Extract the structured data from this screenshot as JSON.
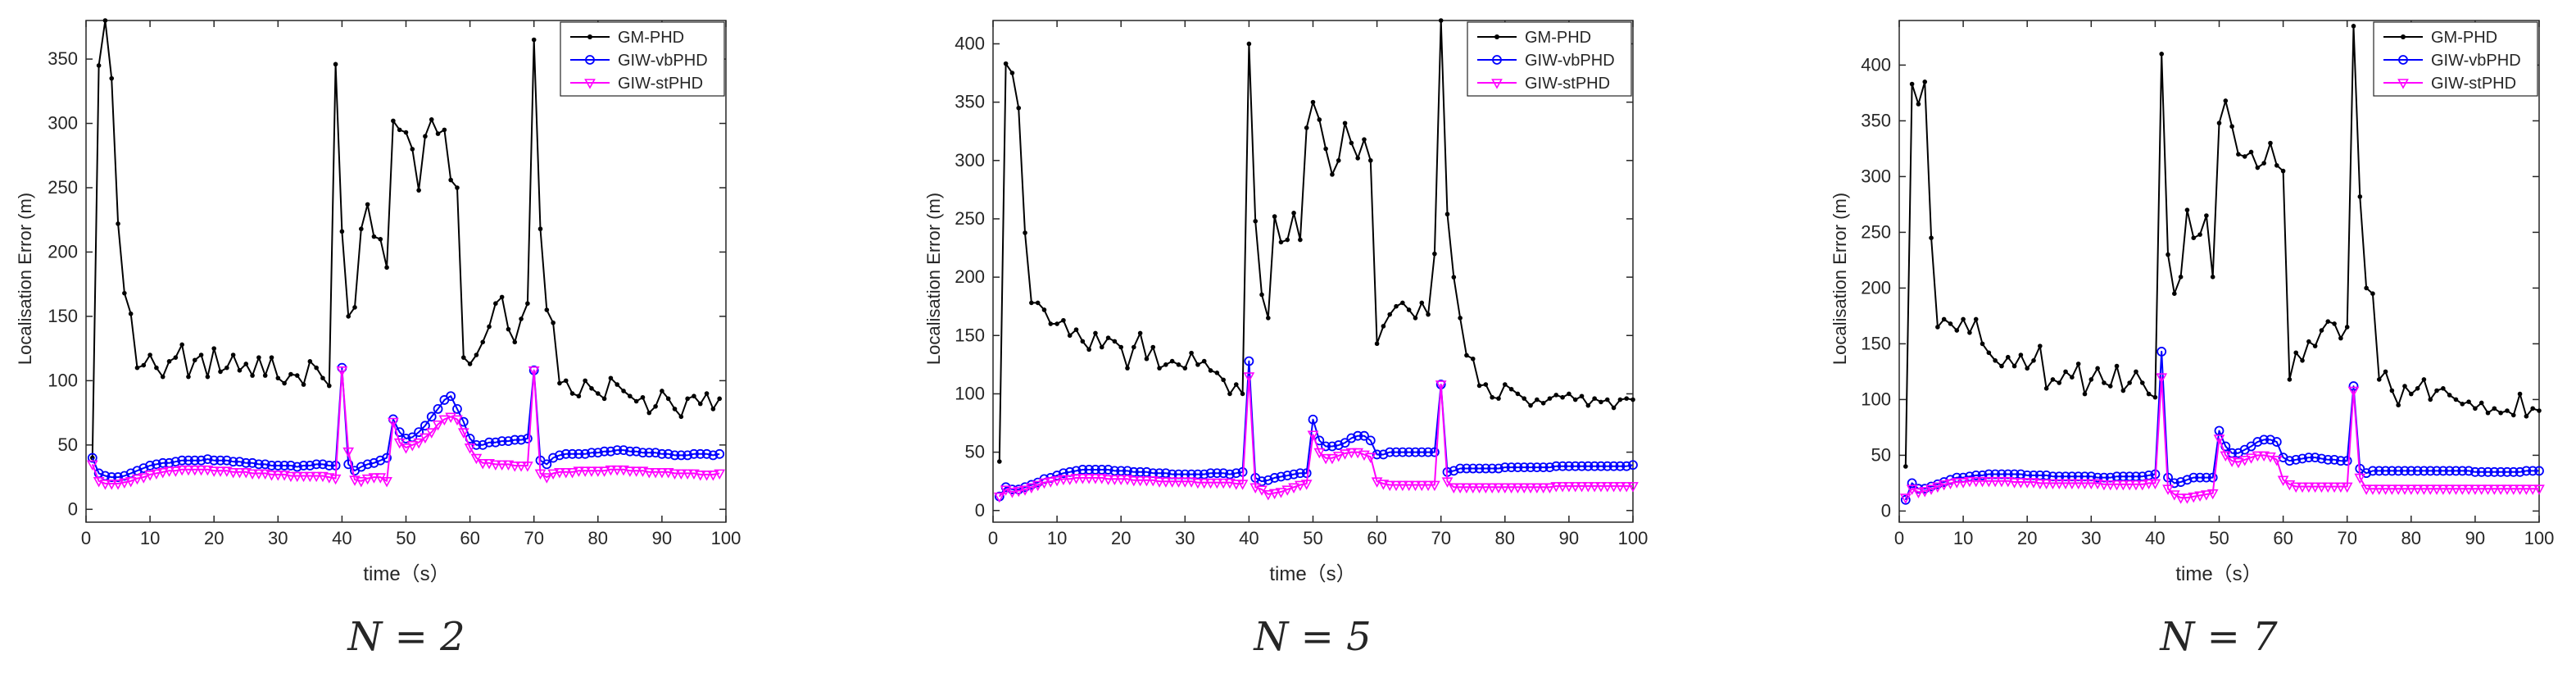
{
  "colors": {
    "gm": "#000000",
    "vb": "#0000ff",
    "st": "#ff00ff",
    "axis": "#262626"
  },
  "chart_data": [
    {
      "type": "line",
      "caption": "N = 2",
      "xlabel": "time（s）",
      "ylabel": "Localisation Error (m)",
      "xlim": [
        0,
        100
      ],
      "ylim": [
        -10,
        380
      ],
      "xticks": [
        0,
        10,
        20,
        30,
        40,
        50,
        60,
        70,
        80,
        90,
        100
      ],
      "yticks": [
        0,
        50,
        100,
        150,
        200,
        250,
        300,
        350
      ],
      "legend_position": "top-right",
      "series": [
        {
          "name": "GM-PHD",
          "color": "#000000",
          "marker": "dot",
          "values": [
            40,
            345,
            380,
            335,
            222,
            168,
            152,
            110,
            112,
            120,
            110,
            103,
            115,
            118,
            128,
            103,
            116,
            120,
            103,
            125,
            107,
            110,
            120,
            108,
            113,
            104,
            118,
            104,
            118,
            102,
            98,
            105,
            104,
            97,
            115,
            110,
            102,
            96,
            346,
            216,
            150,
            157,
            218,
            237,
            212,
            210,
            188,
            302,
            295,
            293,
            280,
            248,
            290,
            303,
            292,
            295,
            256,
            250,
            118,
            113,
            120,
            130,
            142,
            160,
            165,
            140,
            130,
            148,
            160,
            365,
            218,
            155,
            145,
            98,
            100,
            90,
            88,
            100,
            94,
            90,
            86,
            102,
            97,
            92,
            88,
            84,
            87,
            75,
            80,
            92,
            86,
            78,
            72,
            86,
            88,
            82,
            90,
            78,
            86
          ]
        },
        {
          "name": "GIW-vbPHD",
          "color": "#0000ff",
          "marker": "circle",
          "values": [
            40,
            28,
            26,
            25,
            25,
            26,
            28,
            30,
            32,
            34,
            35,
            36,
            36,
            37,
            38,
            38,
            38,
            38,
            39,
            38,
            38,
            38,
            37,
            37,
            36,
            36,
            35,
            35,
            34,
            34,
            34,
            34,
            33,
            34,
            34,
            35,
            35,
            34,
            34,
            110,
            35,
            30,
            33,
            35,
            36,
            38,
            40,
            70,
            60,
            55,
            56,
            60,
            65,
            72,
            78,
            85,
            88,
            78,
            68,
            55,
            50,
            50,
            52,
            52,
            53,
            53,
            54,
            54,
            55,
            108,
            38,
            35,
            40,
            42,
            43,
            43,
            43,
            43,
            44,
            44,
            45,
            45,
            46,
            46,
            45,
            45,
            44,
            44,
            44,
            43,
            43,
            42,
            42,
            42,
            43,
            43,
            43,
            42,
            43
          ]
        },
        {
          "name": "GIW-stPHD",
          "color": "#ff00ff",
          "marker": "triangle-down",
          "values": [
            35,
            22,
            20,
            20,
            20,
            21,
            22,
            24,
            25,
            27,
            28,
            29,
            30,
            30,
            31,
            31,
            31,
            31,
            31,
            30,
            30,
            30,
            29,
            29,
            29,
            28,
            28,
            28,
            27,
            27,
            27,
            26,
            26,
            26,
            26,
            26,
            26,
            25,
            24,
            108,
            45,
            23,
            22,
            24,
            25,
            25,
            22,
            68,
            52,
            48,
            50,
            52,
            56,
            60,
            66,
            70,
            72,
            70,
            60,
            48,
            40,
            36,
            36,
            35,
            35,
            35,
            34,
            34,
            34,
            108,
            28,
            25,
            28,
            29,
            29,
            29,
            30,
            30,
            30,
            30,
            30,
            31,
            31,
            31,
            30,
            30,
            30,
            29,
            29,
            29,
            29,
            28,
            28,
            28,
            28,
            27,
            27,
            27,
            28
          ]
        }
      ]
    },
    {
      "type": "line",
      "caption": "N = 5",
      "xlabel": "time（s）",
      "ylabel": "Localisation Error (m)",
      "xlim": [
        0,
        100
      ],
      "ylim": [
        -10,
        420
      ],
      "xticks": [
        0,
        10,
        20,
        30,
        40,
        50,
        60,
        70,
        80,
        90,
        100
      ],
      "yticks": [
        0,
        50,
        100,
        150,
        200,
        250,
        300,
        350,
        400
      ],
      "legend_position": "top-right",
      "series": [
        {
          "name": "GM-PHD",
          "color": "#000000",
          "marker": "dot",
          "values": [
            42,
            383,
            375,
            345,
            238,
            178,
            178,
            172,
            160,
            160,
            163,
            150,
            155,
            145,
            138,
            152,
            140,
            148,
            145,
            140,
            122,
            140,
            152,
            130,
            140,
            122,
            125,
            128,
            125,
            122,
            135,
            125,
            128,
            120,
            118,
            112,
            100,
            108,
            100,
            400,
            248,
            185,
            165,
            252,
            230,
            232,
            255,
            232,
            328,
            350,
            335,
            310,
            288,
            300,
            332,
            315,
            302,
            318,
            300,
            143,
            158,
            168,
            175,
            178,
            172,
            165,
            178,
            168,
            220,
            420,
            254,
            200,
            165,
            133,
            130,
            107,
            108,
            97,
            96,
            108,
            104,
            100,
            96,
            90,
            95,
            92,
            96,
            99,
            97,
            100,
            95,
            98,
            90,
            96,
            93,
            95,
            88,
            95,
            96,
            95
          ]
        },
        {
          "name": "GIW-vbPHD",
          "color": "#0000ff",
          "marker": "circle",
          "values": [
            12,
            20,
            18,
            18,
            20,
            22,
            24,
            27,
            28,
            30,
            32,
            33,
            34,
            35,
            35,
            35,
            35,
            35,
            34,
            34,
            34,
            33,
            33,
            33,
            32,
            32,
            32,
            31,
            31,
            31,
            31,
            31,
            31,
            32,
            32,
            32,
            31,
            32,
            33,
            128,
            28,
            25,
            26,
            28,
            29,
            30,
            31,
            32,
            32,
            78,
            60,
            55,
            55,
            56,
            58,
            62,
            64,
            64,
            60,
            48,
            48,
            50,
            50,
            50,
            50,
            50,
            50,
            50,
            50,
            108,
            33,
            34,
            36,
            36,
            36,
            36,
            36,
            36,
            36,
            37,
            37,
            37,
            37,
            37,
            37,
            37,
            37,
            38,
            38,
            38,
            38,
            38,
            38,
            38,
            38,
            38,
            38,
            38,
            38,
            39
          ]
        },
        {
          "name": "GIW-stPHD",
          "color": "#ff00ff",
          "marker": "triangle-down",
          "values": [
            12,
            18,
            16,
            17,
            18,
            20,
            22,
            24,
            25,
            26,
            27,
            27,
            28,
            28,
            28,
            28,
            28,
            27,
            27,
            27,
            27,
            26,
            26,
            26,
            26,
            25,
            25,
            25,
            25,
            25,
            25,
            24,
            24,
            24,
            24,
            24,
            24,
            23,
            23,
            115,
            20,
            18,
            14,
            15,
            16,
            18,
            20,
            22,
            23,
            65,
            50,
            45,
            45,
            47,
            49,
            50,
            50,
            48,
            46,
            25,
            23,
            22,
            22,
            22,
            22,
            22,
            22,
            22,
            22,
            108,
            25,
            20,
            20,
            20,
            20,
            20,
            20,
            20,
            20,
            20,
            20,
            20,
            20,
            20,
            20,
            20,
            20,
            21,
            21,
            21,
            21,
            21,
            21,
            21,
            21,
            21,
            21,
            21,
            21,
            21
          ]
        }
      ]
    },
    {
      "type": "line",
      "caption": "N = 7",
      "xlabel": "time（s）",
      "ylabel": "Localisation Error (m)",
      "xlim": [
        0,
        100
      ],
      "ylim": [
        -10,
        440
      ],
      "xticks": [
        0,
        10,
        20,
        30,
        40,
        50,
        60,
        70,
        80,
        90,
        100
      ],
      "yticks": [
        0,
        50,
        100,
        150,
        200,
        250,
        300,
        350,
        400
      ],
      "legend_position": "top-right",
      "series": [
        {
          "name": "GM-PHD",
          "color": "#000000",
          "marker": "dot",
          "values": [
            40,
            383,
            365,
            385,
            245,
            165,
            172,
            168,
            162,
            172,
            160,
            172,
            150,
            142,
            135,
            130,
            138,
            130,
            140,
            128,
            135,
            148,
            110,
            118,
            115,
            125,
            120,
            132,
            105,
            118,
            128,
            115,
            112,
            130,
            108,
            115,
            125,
            115,
            105,
            102,
            410,
            230,
            195,
            210,
            270,
            245,
            248,
            265,
            210,
            348,
            368,
            345,
            320,
            318,
            322,
            308,
            312,
            330,
            310,
            305,
            118,
            142,
            135,
            152,
            148,
            162,
            170,
            168,
            155,
            165,
            435,
            282,
            200,
            195,
            118,
            125,
            108,
            95,
            112,
            105,
            110,
            118,
            100,
            108,
            110,
            104,
            100,
            96,
            98,
            92,
            97,
            88,
            92,
            88,
            90,
            86,
            105,
            85,
            92,
            90
          ]
        },
        {
          "name": "GIW-vbPHD",
          "color": "#0000ff",
          "marker": "circle",
          "values": [
            10,
            25,
            20,
            20,
            22,
            24,
            26,
            28,
            30,
            30,
            31,
            32,
            32,
            33,
            33,
            33,
            33,
            33,
            33,
            32,
            32,
            32,
            32,
            31,
            31,
            31,
            31,
            31,
            31,
            31,
            30,
            30,
            30,
            31,
            31,
            31,
            31,
            31,
            32,
            33,
            143,
            30,
            25,
            26,
            28,
            30,
            30,
            30,
            30,
            72,
            58,
            52,
            52,
            55,
            58,
            62,
            64,
            64,
            62,
            48,
            45,
            46,
            47,
            48,
            48,
            47,
            46,
            46,
            45,
            45,
            112,
            38,
            34,
            36,
            36,
            36,
            36,
            36,
            36,
            36,
            36,
            36,
            36,
            36,
            36,
            36,
            36,
            36,
            36,
            35,
            35,
            35,
            35,
            35,
            35,
            35,
            35,
            36,
            36,
            36
          ]
        },
        {
          "name": "GIW-stPHD",
          "color": "#ff00ff",
          "marker": "triangle-down",
          "values": [
            12,
            20,
            17,
            18,
            20,
            22,
            24,
            25,
            26,
            26,
            27,
            27,
            27,
            27,
            27,
            27,
            27,
            26,
            26,
            26,
            26,
            25,
            25,
            25,
            25,
            25,
            25,
            25,
            25,
            25,
            25,
            24,
            24,
            24,
            24,
            24,
            24,
            24,
            25,
            25,
            120,
            20,
            15,
            12,
            12,
            13,
            14,
            15,
            16,
            65,
            50,
            45,
            44,
            46,
            48,
            50,
            50,
            49,
            46,
            28,
            24,
            22,
            22,
            22,
            22,
            22,
            22,
            22,
            22,
            22,
            108,
            30,
            20,
            20,
            20,
            20,
            20,
            20,
            20,
            20,
            20,
            20,
            20,
            20,
            20,
            20,
            20,
            20,
            20,
            20,
            20,
            20,
            20,
            20,
            20,
            20,
            20,
            20,
            20,
            20
          ]
        }
      ]
    }
  ]
}
